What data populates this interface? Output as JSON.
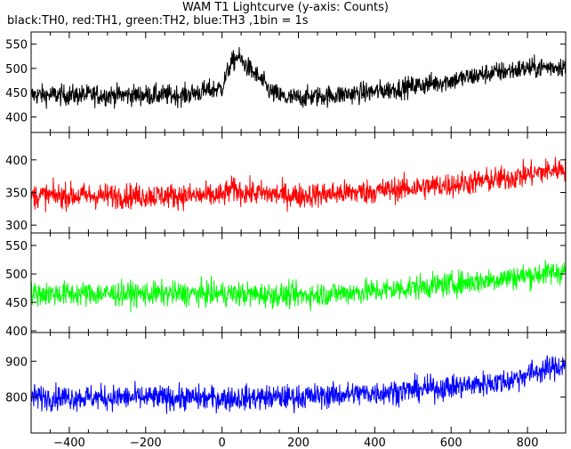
{
  "chart_data": {
    "type": "line",
    "title": "WAM T1 Lightcurve (y-axis: Counts)",
    "subtitle": "black:TH0, red:TH1, green:TH2, blue:TH3 ,1bin = 1s",
    "x_range": [
      -500,
      900
    ],
    "x_ticks": [
      -400,
      -200,
      0,
      200,
      400,
      600,
      800
    ],
    "x_tick_labels": [
      "−400",
      "−200",
      "0",
      "200",
      "400",
      "600",
      "800"
    ],
    "grid": false,
    "panels": [
      {
        "series_color": "#000000",
        "ylim": [
          368,
          575
        ],
        "y_ticks": [
          400,
          450,
          500,
          550
        ],
        "baseline_points": [
          [
            -500,
            445
          ],
          [
            -100,
            445
          ],
          [
            0,
            460
          ],
          [
            20,
            505
          ],
          [
            40,
            525
          ],
          [
            70,
            500
          ],
          [
            100,
            478
          ],
          [
            130,
            450
          ],
          [
            170,
            438
          ],
          [
            300,
            445
          ],
          [
            400,
            452
          ],
          [
            500,
            463
          ],
          [
            600,
            475
          ],
          [
            700,
            490
          ],
          [
            800,
            500
          ],
          [
            900,
            505
          ]
        ],
        "noise_amplitude": 28
      },
      {
        "series_color": "#ff0000",
        "ylim": [
          288,
          442
        ],
        "y_ticks": [
          300,
          350,
          400
        ],
        "baseline_points": [
          [
            -500,
            345
          ],
          [
            0,
            345
          ],
          [
            25,
            355
          ],
          [
            60,
            350
          ],
          [
            200,
            345
          ],
          [
            400,
            352
          ],
          [
            600,
            362
          ],
          [
            750,
            372
          ],
          [
            900,
            388
          ]
        ],
        "noise_amplitude": 25
      },
      {
        "series_color": "#00ff00",
        "ylim": [
          397,
          572
        ],
        "y_ticks": [
          400,
          450,
          500,
          550
        ],
        "baseline_points": [
          [
            -500,
            465
          ],
          [
            0,
            465
          ],
          [
            200,
            462
          ],
          [
            400,
            470
          ],
          [
            600,
            482
          ],
          [
            800,
            497
          ],
          [
            900,
            505
          ]
        ],
        "noise_amplitude": 28
      },
      {
        "series_color": "#0000ff",
        "ylim": [
          700,
          980
        ],
        "y_ticks": [
          800,
          900
        ],
        "baseline_points": [
          [
            -500,
            800
          ],
          [
            0,
            797
          ],
          [
            200,
            800
          ],
          [
            400,
            812
          ],
          [
            600,
            828
          ],
          [
            750,
            845
          ],
          [
            800,
            865
          ],
          [
            900,
            890
          ]
        ],
        "noise_amplitude": 45
      }
    ]
  }
}
